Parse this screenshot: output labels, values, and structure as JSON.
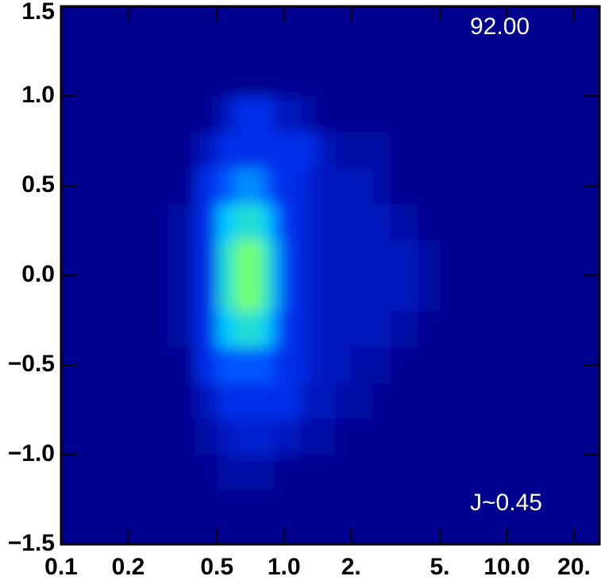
{
  "chart_data": {
    "type": "heatmap",
    "annotations": [
      "92.00",
      "J~0.45"
    ],
    "xlog": true,
    "xlim": [
      0.1,
      26
    ],
    "ylim": [
      -1.5,
      1.5
    ],
    "zlim": [
      0,
      10
    ],
    "xticks": [
      0.1,
      0.2,
      0.5,
      {
        "value": 1,
        "label": "1.0"
      },
      {
        "value": 2,
        "label": "2."
      },
      {
        "value": 5,
        "label": "5."
      },
      {
        "value": 10,
        "label": "10.0"
      },
      {
        "value": 20,
        "label": "20."
      }
    ],
    "yticks": [
      {
        "value": -1.5,
        "label": "−1.5"
      },
      {
        "value": -1,
        "label": "−1.0"
      },
      {
        "value": -0.5,
        "label": "−0.5"
      },
      {
        "value": 0,
        "label": "0.0"
      },
      0.5,
      {
        "value": 1,
        "label": "1.0"
      },
      1.5
    ],
    "background": "#00008f",
    "palette": [
      "#00008f",
      "#0038ff",
      "#00c8ff",
      "#50ff90",
      "#ffff00"
    ],
    "xbins": [
      0.3,
      0.4,
      0.5,
      0.6,
      0.7,
      0.8,
      0.9,
      1.0,
      1.2,
      1.4,
      1.7,
      2.0,
      2.5,
      3,
      4,
      5
    ],
    "ybins": [
      -1.2,
      -1.0,
      -0.8,
      -0.6,
      -0.4,
      -0.2,
      0,
      0.2,
      0.4,
      0.6,
      0.8,
      1.0,
      1.2
    ],
    "z": [
      [
        0,
        0,
        0.5,
        0.5,
        0.5,
        0.5,
        0,
        0,
        0,
        0,
        0,
        0,
        0,
        0,
        0
      ],
      [
        0,
        0.5,
        1,
        1.5,
        1.5,
        1.5,
        1,
        1,
        0.5,
        0.5,
        0,
        0,
        0,
        0,
        0
      ],
      [
        0,
        1,
        2,
        2,
        2,
        2,
        2,
        2,
        1,
        1,
        0.5,
        0.5,
        0,
        0,
        0
      ],
      [
        0,
        2,
        3,
        3,
        3,
        3,
        2,
        2,
        1.5,
        1,
        1,
        0.5,
        0.5,
        0,
        0
      ],
      [
        0.5,
        2,
        5,
        6,
        6,
        5,
        3,
        2,
        1.5,
        1,
        1,
        1,
        1,
        0.5,
        0
      ],
      [
        0.5,
        2,
        6,
        8,
        8,
        6,
        4,
        2,
        1.5,
        1,
        1,
        1,
        1,
        1,
        0.5
      ],
      [
        0.5,
        2,
        6,
        8,
        8,
        6,
        4,
        2,
        1.5,
        1,
        1,
        1,
        1,
        1,
        0.5
      ],
      [
        0.5,
        2,
        5,
        6,
        6,
        5,
        3,
        2,
        1.5,
        1,
        1,
        1,
        1,
        0.5,
        0
      ],
      [
        0,
        2,
        3,
        4,
        4,
        3,
        2,
        2,
        1.5,
        1,
        1,
        1,
        0.5,
        0,
        0
      ],
      [
        0,
        1,
        2,
        2,
        2,
        2,
        2,
        2,
        2,
        1,
        0.5,
        0.5,
        0.5,
        0,
        0
      ],
      [
        0,
        0,
        1,
        2,
        2,
        2,
        1,
        1,
        0.5,
        0,
        0,
        0,
        0,
        0,
        0
      ],
      [
        0,
        0,
        0,
        0,
        0,
        0,
        0,
        0,
        0,
        0,
        0,
        0,
        0,
        0,
        0
      ]
    ]
  }
}
